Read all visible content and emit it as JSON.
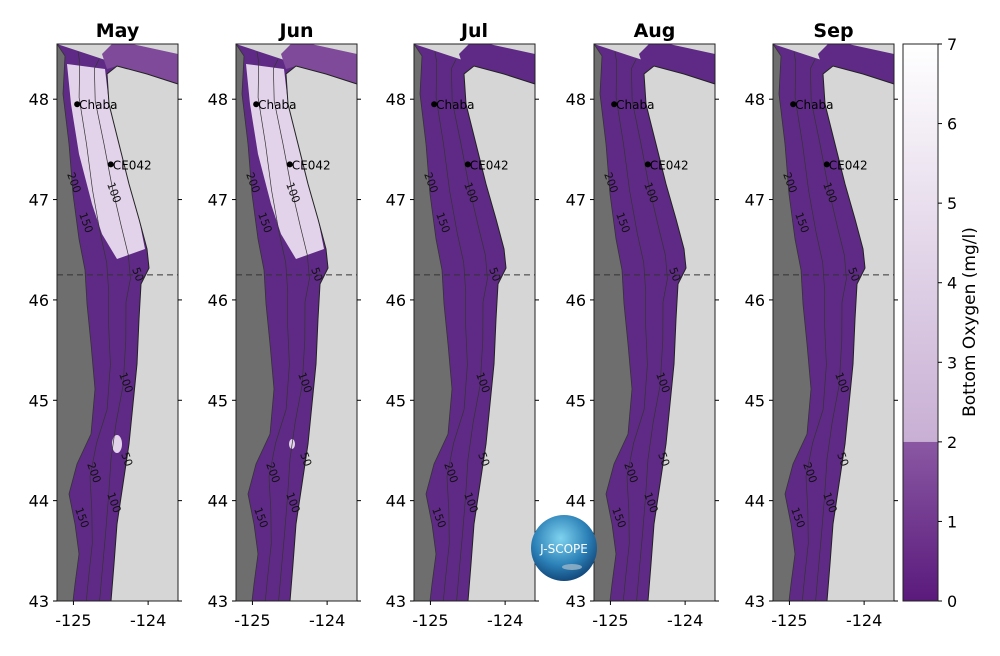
{
  "figure": {
    "panels": [
      {
        "title": "May",
        "hypoxic_north": false
      },
      {
        "title": "Jun",
        "hypoxic_north": false
      },
      {
        "title": "Jul",
        "hypoxic_north": true
      },
      {
        "title": "Aug",
        "hypoxic_north": true
      },
      {
        "title": "Sep",
        "hypoxic_north": true
      }
    ],
    "lat_ticks": [
      "43",
      "44",
      "45",
      "46",
      "47",
      "48"
    ],
    "lon_ticks": [
      "-125",
      "-124"
    ],
    "lat_range": [
      43,
      48.55
    ],
    "lon_range": [
      -125.22,
      -123.6
    ],
    "dashed_line_lat": 46.25,
    "stations": [
      {
        "name": "Chaba",
        "lon": -124.95,
        "lat": 47.95
      },
      {
        "name": "CE042",
        "lon": -124.5,
        "lat": 47.35
      }
    ],
    "contour_labels": [
      "50",
      "100",
      "150",
      "200"
    ],
    "logo_text": "J-SCOPE",
    "colors": {
      "deep_ocean": "#6e6e6e",
      "land": "#d6d6d6",
      "hypoxic": "#5f2a86",
      "hypoxic_light": "#7f4a9a",
      "oxygenated": "#e2d3ea"
    }
  },
  "colorbar": {
    "label": "Bottom Oxygen (mg/l)",
    "ticks": [
      "0",
      "1",
      "2",
      "3",
      "4",
      "5",
      "6",
      "7"
    ],
    "range": [
      0,
      7
    ],
    "threshold": 2
  }
}
